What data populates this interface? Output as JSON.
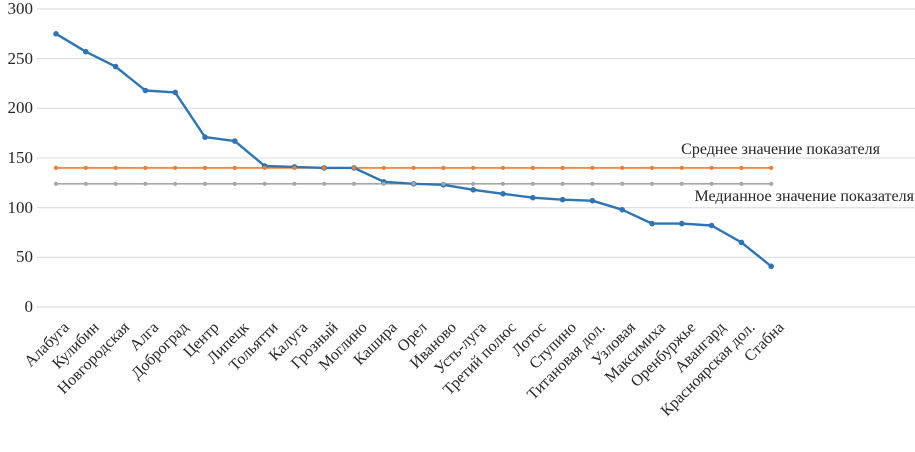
{
  "chart_data": {
    "type": "line",
    "title": "",
    "xlabel": "",
    "ylabel": "",
    "ylim": [
      0,
      300
    ],
    "yticks": [
      0,
      50,
      100,
      150,
      200,
      250,
      300
    ],
    "grid": true,
    "legend_position": "none",
    "categories": [
      "Алабуга",
      "Кулибин",
      "Новгородская",
      "Алга",
      "Доброград",
      "Центр",
      "Липецк",
      "Тольятти",
      "Калуга",
      "Грозный",
      "Моглино",
      "Кашира",
      "Орел",
      "Иваново",
      "Усть-луга",
      "Третий полюс",
      "Лотос",
      "Ступино",
      "Титановая дол.",
      "Узловая",
      "Максимиха",
      "Оренбуржье",
      "Авангард",
      "Красноярская дол.",
      "Стабна"
    ],
    "values": [
      275,
      257,
      242,
      218,
      216,
      171,
      167,
      142,
      141,
      140,
      140,
      126,
      124,
      123,
      118,
      114,
      110,
      108,
      107,
      98,
      84,
      84,
      82,
      65,
      41
    ],
    "reference_lines": {
      "mean": {
        "label": "Среднее значение показателя",
        "value": 140
      },
      "median": {
        "label": "Медианное значение показателя",
        "value": 124
      }
    },
    "colors": {
      "main_series": "#2E75B6",
      "mean_line": "#ED7D31",
      "median_line": "#A6A6A6",
      "gridline": "#D9D9D9",
      "axis_line": "#D0D0D0",
      "text": "#262626"
    }
  }
}
